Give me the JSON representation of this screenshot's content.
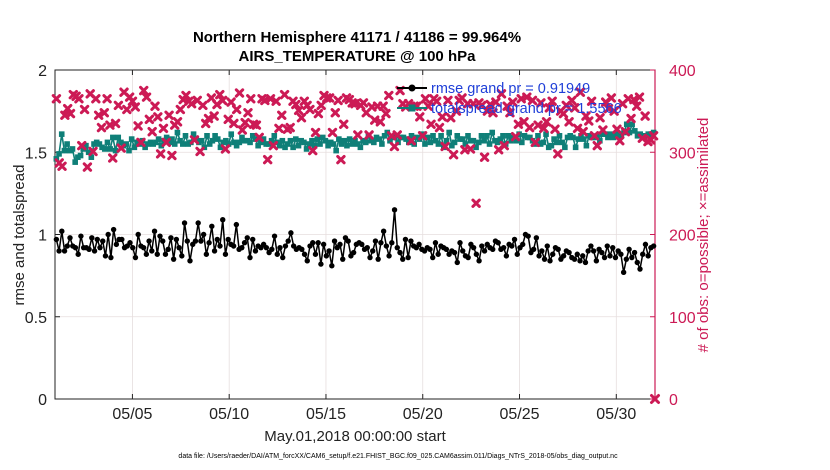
{
  "chart_data": {
    "type": "line",
    "title": [
      "Northern Hemisphere 41171 / 41186 = 99.964%",
      "AIRS_TEMPERATURE @ 100 hPa"
    ],
    "xlabel": "May.01,2018 00:00:00 start",
    "ylabel": "rmse and totalspread",
    "ylabel_right": "# of obs: o=possible; ×=assimilated",
    "footnote": "data file: /Users/raeder/DAI/ATM_forcXX/CAM6_setup/f.e21.FHIST_BGC.f09_025.CAM6assim.011/Diags_NTrS_2018-05/obs_diag_output.nc",
    "x_tick_labels": [
      "05/05",
      "05/10",
      "05/15",
      "05/20",
      "05/25",
      "05/30"
    ],
    "x_ticks": [
      5,
      10,
      15,
      20,
      25,
      30
    ],
    "xlim": [
      1,
      32
    ],
    "ylim": [
      0,
      2
    ],
    "y_ticks": [
      0,
      0.5,
      1,
      1.5,
      2
    ],
    "y_tick_labels": [
      "0",
      "0.5",
      "1",
      "1.5",
      "2"
    ],
    "ylim_right": [
      0,
      400
    ],
    "y_ticks_right": [
      0,
      100,
      200,
      300,
      400
    ],
    "y_tick_labels_right": [
      "0",
      "100",
      "200",
      "300",
      "400"
    ],
    "grid": true,
    "legend_position": "top-right",
    "colors": {
      "rmse": "#000000",
      "spread": "#0f7f78",
      "obs": "#cc1a55",
      "legend_text": "#1f3fd8"
    },
    "series": [
      {
        "name": "rmse grand pr = 0.91949",
        "axis": "left",
        "values": [
          0.97,
          0.9,
          1.02,
          0.9,
          0.93,
          0.98,
          0.93,
          0.92,
          0.88,
          0.99,
          0.92,
          0.92,
          0.91,
          0.98,
          0.9,
          0.97,
          0.92,
          0.96,
          0.87,
          1.0,
          0.86,
          1.03,
          0.94,
          0.97,
          0.97,
          0.92,
          0.93,
          0.95,
          0.92,
          0.86,
          1.0,
          0.93,
          0.92,
          0.88,
          0.96,
          0.9,
          1.02,
          0.88,
          0.99,
          0.96,
          0.88,
          0.91,
          0.98,
          0.85,
          0.97,
          0.92,
          0.87,
          1.07,
          0.96,
          0.84,
          0.94,
          0.96,
          1.07,
          0.96,
          1.0,
          0.88,
          0.95,
          1.05,
          0.9,
          0.97,
          0.93,
          1.09,
          0.88,
          0.97,
          0.94,
          0.93,
          1.06,
          0.91,
          0.92,
          0.95,
          0.98,
          0.86,
          0.97,
          0.9,
          0.93,
          0.92,
          0.94,
          0.92,
          0.89,
          0.91,
          0.99,
          0.88,
          0.92,
          0.86,
          0.93,
          0.96,
          1.01,
          0.93,
          0.91,
          0.92,
          0.91,
          0.88,
          0.84,
          0.93,
          0.95,
          0.88,
          0.95,
          0.82,
          0.94,
          0.87,
          0.9,
          0.81,
          0.96,
          0.92,
          0.94,
          0.85,
          0.98,
          0.96,
          0.87,
          0.89,
          0.94,
          0.95,
          0.94,
          0.91,
          0.92,
          0.86,
          0.9,
          0.96,
          0.85,
          0.95,
          1.02,
          0.93,
          0.87,
          0.95,
          1.15,
          0.92,
          0.89,
          0.85,
          0.97,
          0.86,
          0.96,
          0.93,
          0.92,
          0.94,
          0.91,
          0.9,
          0.92,
          0.91,
          0.86,
          0.95,
          0.88,
          0.93,
          0.92,
          0.91,
          0.88,
          0.9,
          0.89,
          0.83,
          0.95,
          0.9,
          0.87,
          0.86,
          0.94,
          0.92,
          0.88,
          0.84,
          0.93,
          0.9,
          0.94,
          0.92,
          0.91,
          0.96,
          0.95,
          0.91,
          0.92,
          0.87,
          0.94,
          0.93,
          0.97,
          0.88,
          0.92,
          0.94,
          1.0,
          0.99,
          0.89,
          0.91,
          0.98,
          0.87,
          0.9,
          0.85,
          0.93,
          0.84,
          0.88,
          0.92,
          0.91,
          0.85,
          0.87,
          0.9,
          0.89,
          0.86,
          0.85,
          0.88,
          0.84,
          0.87,
          0.83,
          0.9,
          0.93,
          0.9,
          0.84,
          0.91,
          0.89,
          0.86,
          0.93,
          0.87,
          0.92,
          0.86,
          0.9,
          0.88,
          0.77,
          0.85,
          0.91,
          0.86,
          0.89,
          0.83,
          0.79,
          0.88,
          0.94,
          0.87,
          0.92,
          0.93
        ]
      },
      {
        "name": "totalspread grand pr = 1.5566",
        "axis": "left",
        "values": [
          1.46,
          1.49,
          1.61,
          1.51,
          1.55,
          1.51,
          1.52,
          1.44,
          1.47,
          1.48,
          1.52,
          1.54,
          1.5,
          1.47,
          1.55,
          1.56,
          1.55,
          1.53,
          1.52,
          1.56,
          1.52,
          1.59,
          1.51,
          1.59,
          1.56,
          1.54,
          1.55,
          1.51,
          1.58,
          1.53,
          1.56,
          1.55,
          1.57,
          1.53,
          1.55,
          1.56,
          1.55,
          1.56,
          1.58,
          1.54,
          1.57,
          1.59,
          1.56,
          1.58,
          1.55,
          1.62,
          1.57,
          1.55,
          1.6,
          1.55,
          1.56,
          1.61,
          1.58,
          1.56,
          1.57,
          1.53,
          1.6,
          1.55,
          1.57,
          1.6,
          1.58,
          1.53,
          1.56,
          1.57,
          1.55,
          1.61,
          1.56,
          1.54,
          1.56,
          1.59,
          1.57,
          1.57,
          1.56,
          1.6,
          1.58,
          1.54,
          1.56,
          1.58,
          1.55,
          1.55,
          1.57,
          1.6,
          1.56,
          1.54,
          1.57,
          1.53,
          1.55,
          1.57,
          1.53,
          1.58,
          1.54,
          1.57,
          1.56,
          1.52,
          1.55,
          1.57,
          1.54,
          1.58,
          1.55,
          1.59,
          1.57,
          1.54,
          1.56,
          1.55,
          1.51,
          1.58,
          1.55,
          1.57,
          1.54,
          1.58,
          1.55,
          1.57,
          1.55,
          1.53,
          1.57,
          1.56,
          1.6,
          1.57,
          1.56,
          1.59,
          1.58,
          1.55,
          1.6,
          1.62,
          1.57,
          1.59,
          1.6,
          1.56,
          1.59,
          1.59,
          1.58,
          1.56,
          1.6,
          1.55,
          1.59,
          1.58,
          1.61,
          1.55,
          1.59,
          1.56,
          1.6,
          1.57,
          1.55,
          1.6,
          1.53,
          1.57,
          1.62,
          1.54,
          1.56,
          1.6,
          1.58,
          1.58,
          1.55,
          1.6,
          1.57,
          1.57,
          1.53,
          1.56,
          1.6,
          1.57,
          1.6,
          1.55,
          1.62,
          1.57,
          1.56,
          1.58,
          1.6,
          1.55,
          1.6,
          1.57,
          1.59,
          1.57,
          1.61,
          1.56,
          1.6,
          1.59,
          1.59,
          1.57,
          1.55,
          1.6,
          1.55,
          1.56,
          1.61,
          1.53,
          1.54,
          1.58,
          1.56,
          1.6,
          1.56,
          1.53,
          1.59,
          1.6,
          1.59,
          1.53,
          1.58,
          1.6,
          1.58,
          1.54,
          1.6,
          1.59,
          1.59,
          1.6,
          1.57,
          1.61,
          1.61,
          1.59,
          1.61,
          1.59,
          1.61,
          1.6,
          1.61,
          1.62,
          1.67,
          1.62,
          1.67,
          1.63,
          1.6,
          1.61,
          1.6,
          1.6,
          1.61,
          1.61,
          1.62
        ]
      },
      {
        "name": "obs possible / assimilated",
        "axis": "right",
        "values": [
          365,
          287,
          283,
          345,
          353,
          347,
          370,
          368,
          365,
          308,
          352,
          282,
          371,
          301,
          365,
          345,
          330,
          348,
          365,
          333,
          293,
          335,
          357,
          305,
          373,
          352,
          367,
          362,
          355,
          332,
          312,
          375,
          367,
          340,
          325,
          356,
          343,
          298,
          329,
          312,
          345,
          296,
          333,
          337,
          352,
          364,
          369,
          362,
          359,
          315,
          363,
          301,
          357,
          335,
          341,
          366,
          344,
          358,
          370,
          363,
          304,
          340,
          361,
          335,
          352,
          372,
          327,
          336,
          348,
          365,
          334,
          333,
          318,
          365,
          363,
          291,
          365,
          308,
          362,
          329,
          345,
          370,
          328,
          330,
          362,
          358,
          351,
          342,
          362,
          357,
          352,
          302,
          324,
          347,
          357,
          369,
          366,
          366,
          324,
          348,
          363,
          291,
          334,
          366,
          364,
          360,
          359,
          321,
          357,
          360,
          348,
          321,
          355,
          339,
          356,
          337,
          356,
          347,
          369,
          320,
          307,
          321,
          375,
          359,
          355,
          359,
          314,
          356,
          356,
          343,
          320,
          365,
          356,
          334,
          365,
          362,
          330,
          343,
          307,
          363,
          342,
          297,
          350,
          363,
          366,
          303,
          359,
          304,
          359,
          238,
          360,
          357,
          294,
          350,
          358,
          348,
          361,
          303,
          371,
          308,
          356,
          348,
          361,
          319,
          334,
          365,
          337,
          367,
          330,
          363,
          312,
          333,
          360,
          329,
          337,
          354,
          362,
          328,
          298,
          350,
          347,
          357,
          337,
          363,
          354,
          329,
          373,
          325,
          344,
          338,
          362,
          320,
          308,
          342,
          327,
          361,
          353,
          366,
          350,
          328,
          314,
          359,
          325,
          365,
          341,
          364,
          356,
          367,
          317,
          344,
          313,
          315,
          320
        ]
      }
    ]
  }
}
